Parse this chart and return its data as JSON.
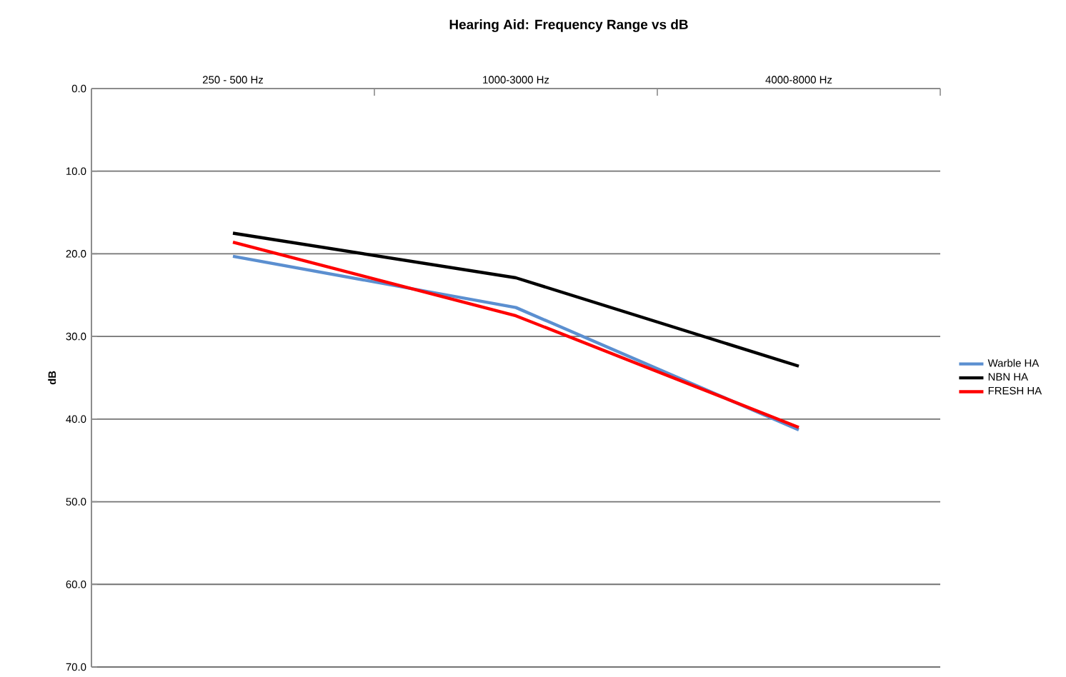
{
  "chart_data": {
    "type": "line",
    "title": "Hearing Aid: Frequency Range vs dB",
    "ylabel": "dB",
    "categories": [
      "250 - 500 Hz",
      "1000-3000 Hz",
      "4000-8000 Hz"
    ],
    "series": [
      {
        "name": "Warble HA",
        "color": "#5b8fd0",
        "values": [
          20.3,
          26.5,
          41.3
        ]
      },
      {
        "name": "NBN HA",
        "color": "#000000",
        "values": [
          17.5,
          22.9,
          33.6
        ]
      },
      {
        "name": "FRESH HA",
        "color": "#ff0000",
        "values": [
          18.6,
          27.5,
          41.0
        ]
      }
    ],
    "ylim": [
      70,
      0
    ],
    "yticks": [
      {
        "value": 0,
        "label": "0.0"
      },
      {
        "value": 10,
        "label": "10.0"
      },
      {
        "value": 20,
        "label": "20.0"
      },
      {
        "value": 30,
        "label": "30.0"
      },
      {
        "value": 40,
        "label": "40.0"
      },
      {
        "value": 50,
        "label": "50.0"
      },
      {
        "value": 60,
        "label": "60.0"
      },
      {
        "value": 70,
        "label": "70.0"
      }
    ],
    "grid": "y",
    "legend": "right",
    "marker": "none",
    "line_style": "solid"
  }
}
